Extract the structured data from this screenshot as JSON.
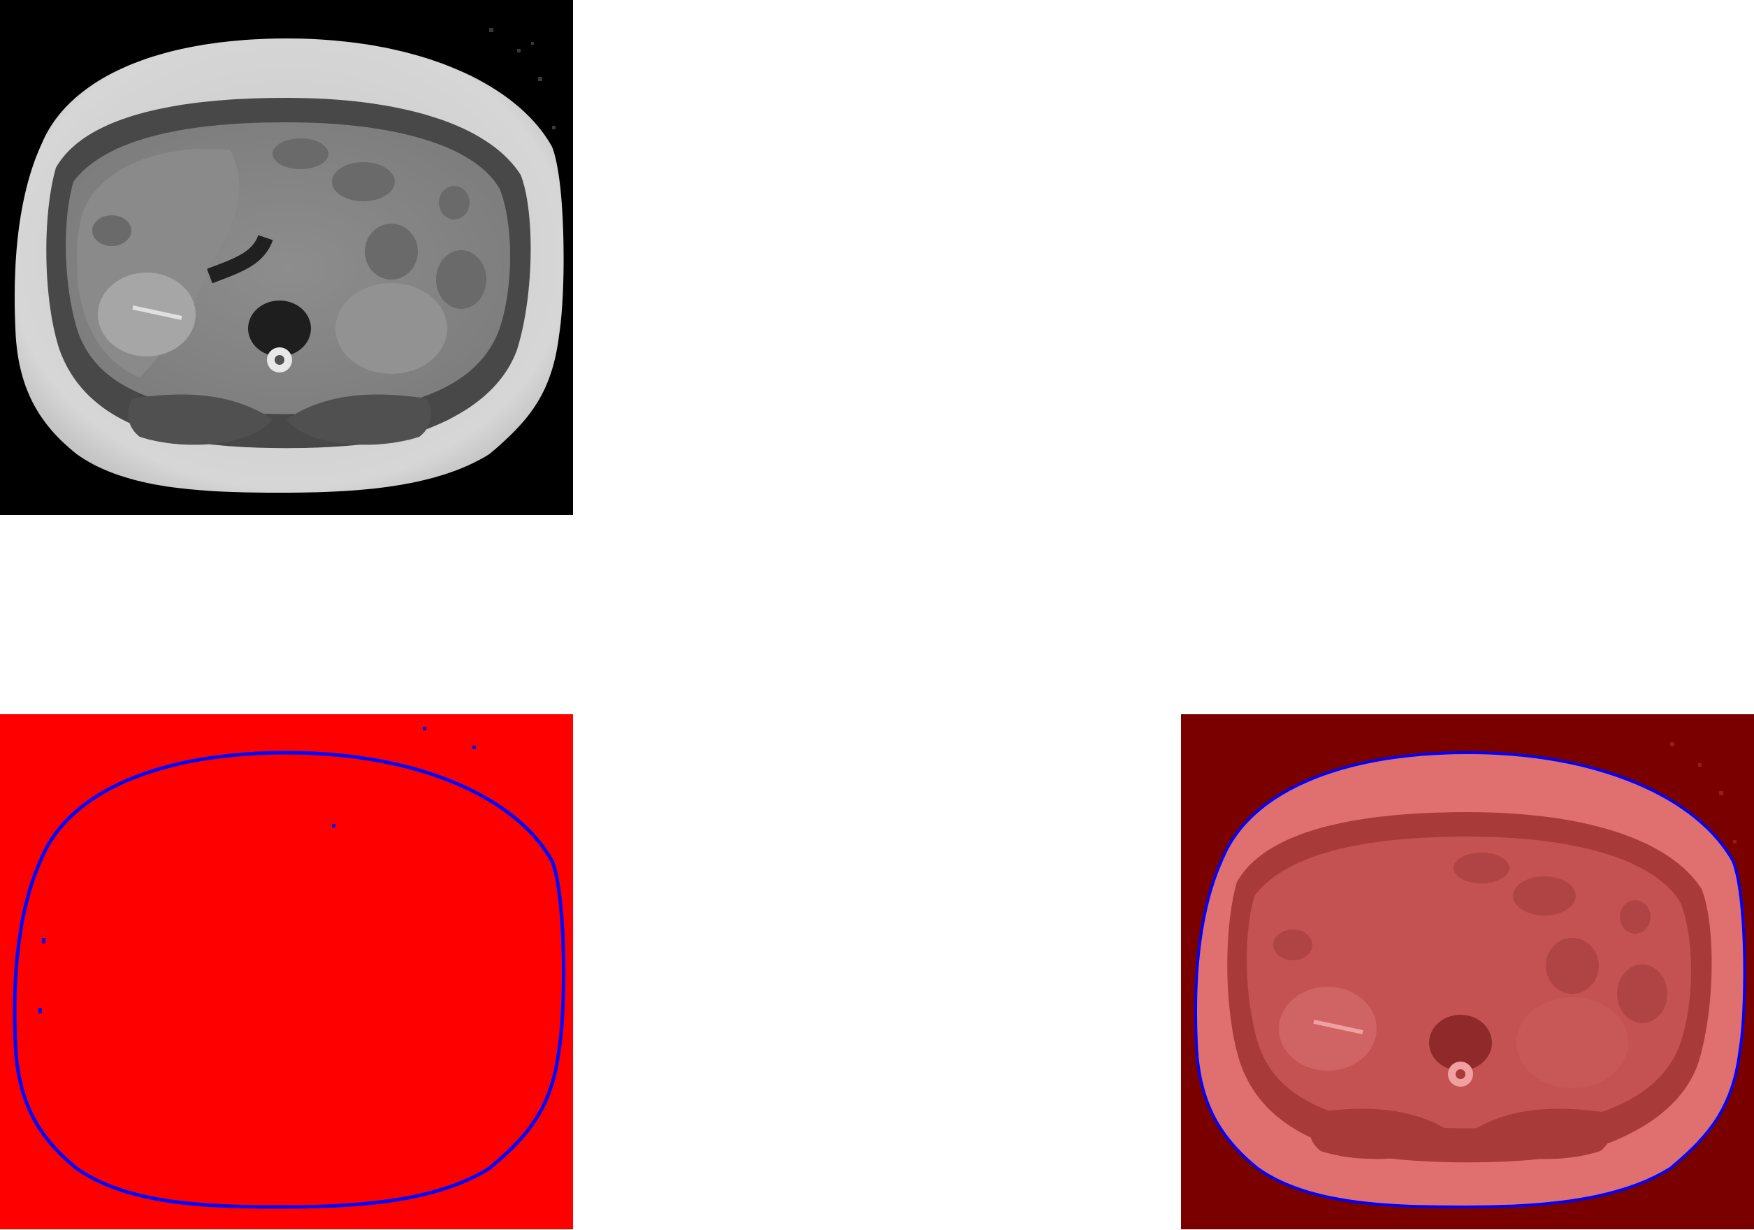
{
  "colors": {
    "background": "#ffffff",
    "mri_background": "#000000",
    "mask_fill": "#ff0000",
    "contour": "#0000ff",
    "overlay_background": "#7a0000",
    "overlay_body": "#de6a6a"
  },
  "panels": [
    {
      "id": "mri-slice",
      "content": "grayscale-abdominal-mri"
    },
    {
      "id": "segmentation-mask",
      "content": "red-mask-with-blue-contour"
    },
    {
      "id": "overlay",
      "content": "mri-with-red-overlay-and-blue-contour"
    }
  ]
}
